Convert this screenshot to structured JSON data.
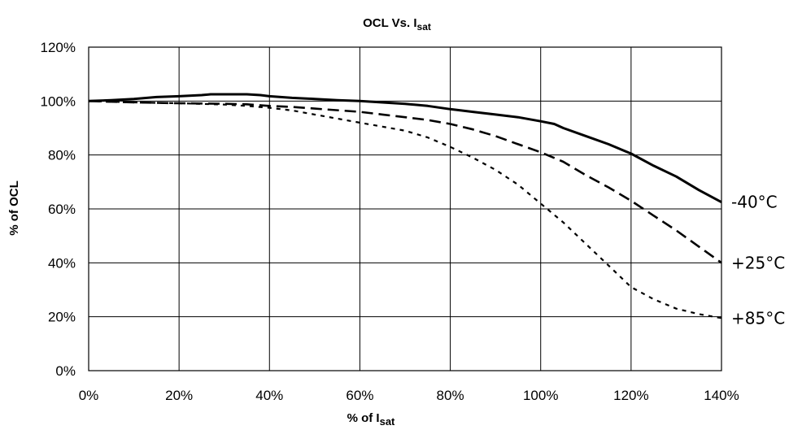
{
  "chart_data": {
    "type": "line",
    "title": {
      "main": "OCL Vs. I",
      "sub": "sat"
    },
    "xlabel": {
      "main": "% of I",
      "sub": "sat"
    },
    "ylabel": "% of OCL",
    "xlim": [
      0,
      140
    ],
    "ylim": [
      0,
      120
    ],
    "x_ticks": [
      0,
      20,
      40,
      60,
      80,
      100,
      120,
      140
    ],
    "x_tick_labels": [
      "0%",
      "20%",
      "40%",
      "60%",
      "80%",
      "100%",
      "120%",
      "140%"
    ],
    "y_ticks": [
      0,
      20,
      40,
      60,
      80,
      100,
      120
    ],
    "y_tick_labels": [
      "0%",
      "20%",
      "40%",
      "60%",
      "80%",
      "100%",
      "120%"
    ],
    "grid": true,
    "series": [
      {
        "name": "-40°C",
        "style": "solid",
        "x": [
          0,
          5,
          10,
          15,
          20,
          25,
          27,
          30,
          35,
          38,
          40,
          45,
          50,
          55,
          60,
          65,
          70,
          75,
          80,
          85,
          90,
          95,
          100,
          103,
          105,
          110,
          115,
          120,
          125,
          130,
          135,
          140
        ],
        "values": [
          100,
          100.3,
          100.8,
          101.5,
          101.8,
          102.2,
          102.5,
          102.5,
          102.5,
          102.2,
          101.8,
          101.2,
          100.8,
          100.3,
          100,
          99.5,
          99,
          98.2,
          97,
          96,
          95,
          94,
          92.5,
          91.5,
          90,
          87,
          84,
          80.5,
          76,
          72,
          67,
          62.5
        ]
      },
      {
        "name": "+25°C",
        "style": "dash",
        "x": [
          0,
          10,
          20,
          30,
          35,
          40,
          45,
          50,
          60,
          65,
          70,
          75,
          80,
          85,
          90,
          95,
          100,
          105,
          110,
          115,
          120,
          125,
          130,
          135,
          140
        ],
        "values": [
          100,
          99.5,
          99.2,
          99,
          98.8,
          98.2,
          97.8,
          97.2,
          96,
          95,
          94,
          93,
          91.5,
          89.5,
          87,
          84,
          81,
          77.5,
          72.5,
          68,
          63,
          57.5,
          52,
          46,
          40
        ]
      },
      {
        "name": "+85°C",
        "style": "dot",
        "x": [
          0,
          10,
          20,
          30,
          35,
          40,
          45,
          50,
          55,
          60,
          65,
          70,
          75,
          80,
          85,
          90,
          95,
          100,
          105,
          110,
          115,
          120,
          125,
          130,
          135,
          140
        ],
        "values": [
          100,
          99.5,
          99.2,
          98.7,
          98.2,
          97.5,
          96.5,
          95,
          93.5,
          92,
          90.5,
          89,
          86.5,
          83,
          79,
          74.5,
          69,
          62,
          55,
          47,
          39,
          31,
          26.5,
          23,
          21,
          19.5
        ]
      }
    ]
  }
}
